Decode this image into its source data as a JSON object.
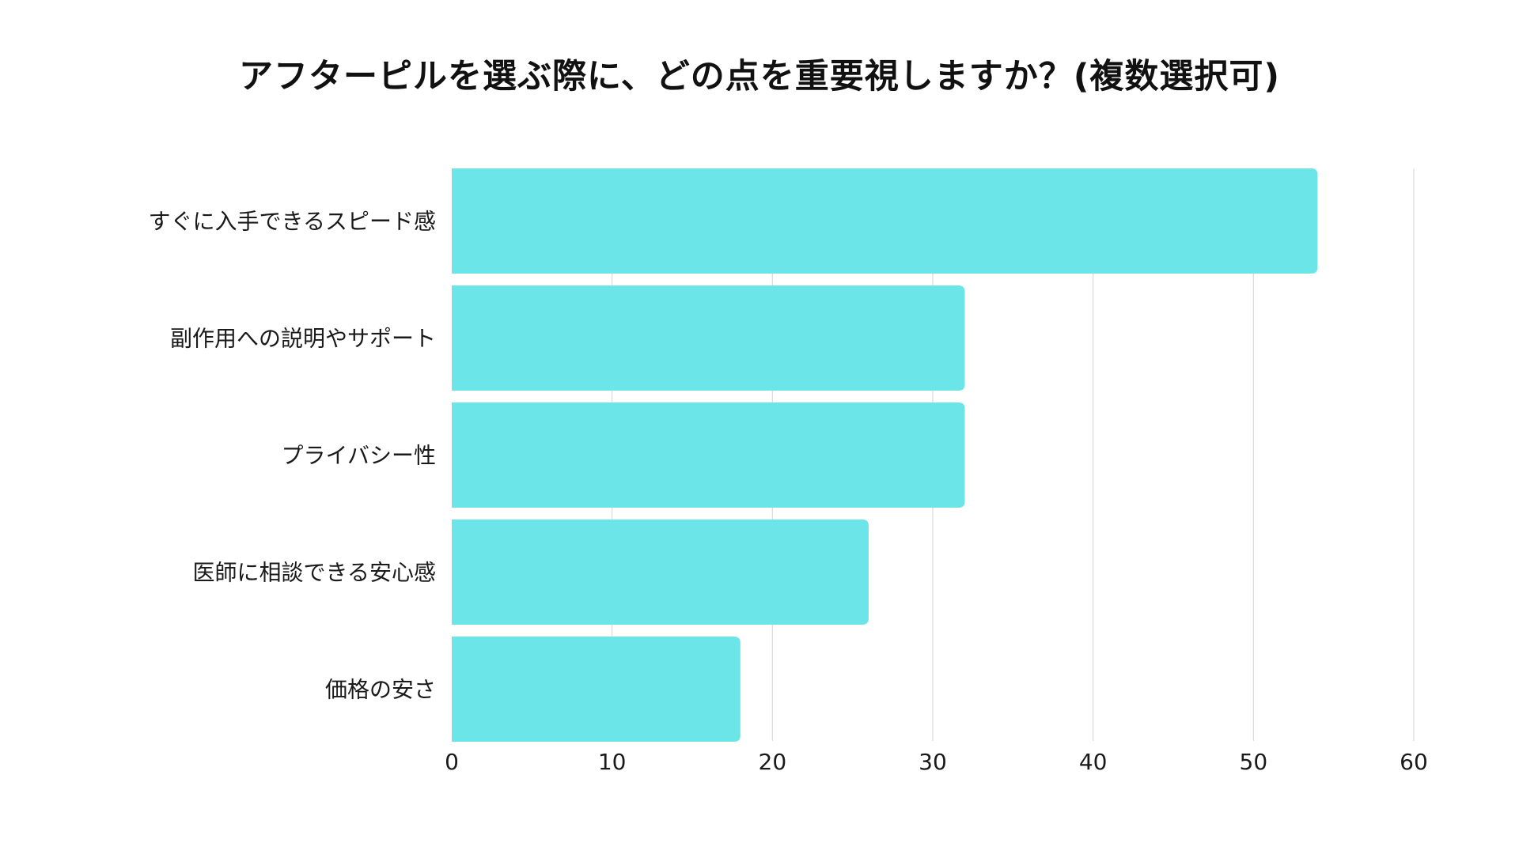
{
  "chart_data": {
    "type": "bar",
    "orientation": "horizontal",
    "title": "アフターピルを選ぶ際に、どの点を重要視しますか？(複数選択可)",
    "categories": [
      "すぐに入手できるスピード感",
      "副作用への説明やサポート",
      "プライバシー性",
      "医師に相談できる安心感",
      "価格の安さ"
    ],
    "values": [
      54,
      32,
      32,
      26,
      18
    ],
    "xlabel": "",
    "ylabel": "",
    "xlim": [
      0,
      60
    ],
    "xticks": [
      "0",
      "10",
      "20",
      "30",
      "40",
      "50",
      "60"
    ],
    "grid": "vertical",
    "legend": "none",
    "bar_color": "#6ce5e8",
    "grid_color": "#d9d9d9"
  }
}
